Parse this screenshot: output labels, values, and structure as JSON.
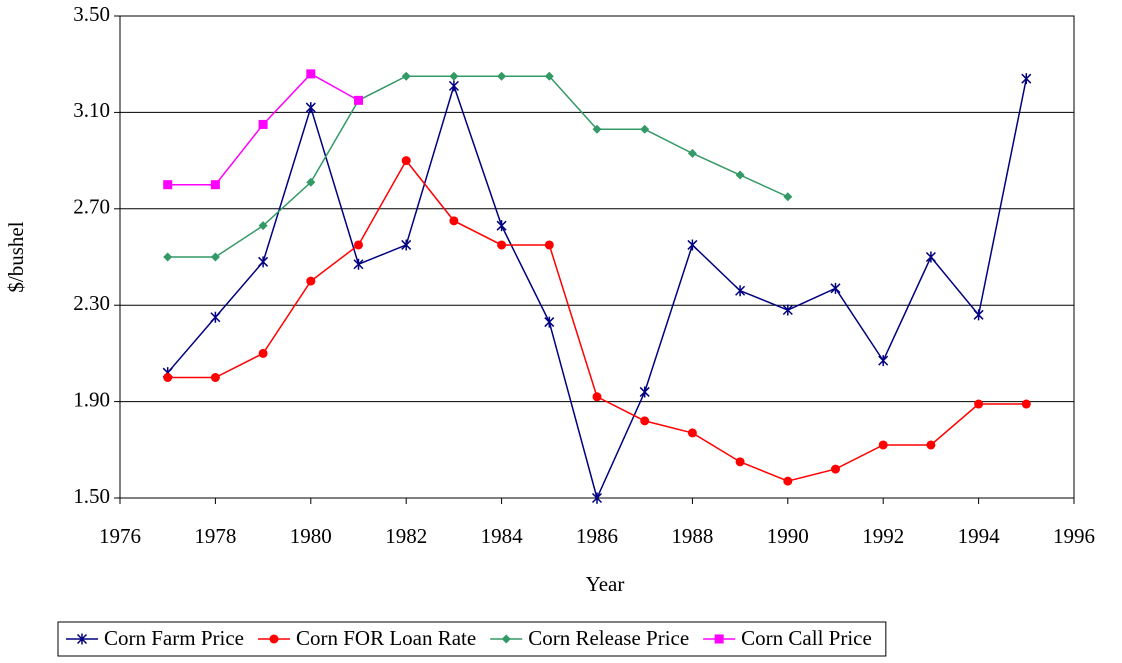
{
  "chart_data": {
    "type": "line",
    "x_label": "Year",
    "y_label": "$/bushel",
    "x": [
      1977,
      1978,
      1979,
      1980,
      1981,
      1982,
      1983,
      1984,
      1985,
      1986,
      1987,
      1988,
      1989,
      1990,
      1991,
      1992,
      1993,
      1994,
      1995
    ],
    "series": [
      {
        "name": "Corn Farm Price",
        "color": "#000080",
        "marker": "asterisk",
        "values": [
          2.02,
          2.25,
          2.48,
          3.12,
          2.47,
          2.55,
          3.21,
          2.63,
          2.23,
          1.5,
          1.94,
          2.55,
          2.36,
          2.28,
          2.37,
          2.07,
          2.5,
          2.26,
          3.24
        ]
      },
      {
        "name": "Corn FOR Loan Rate",
        "color": "#ff0000",
        "marker": "circle",
        "values": [
          2.0,
          2.0,
          2.1,
          2.4,
          2.55,
          2.9,
          2.65,
          2.55,
          2.55,
          1.92,
          1.82,
          1.77,
          1.65,
          1.57,
          1.62,
          1.72,
          1.72,
          1.89,
          1.89
        ]
      },
      {
        "name": "Corn Release Price",
        "color": "#339966",
        "marker": "diamond",
        "values": [
          2.5,
          2.5,
          2.63,
          2.81,
          3.15,
          3.25,
          3.25,
          3.25,
          3.25,
          3.03,
          3.03,
          2.93,
          2.84,
          2.75,
          null,
          null,
          null,
          null,
          null
        ]
      },
      {
        "name": "Corn Call Price",
        "color": "#ff00ff",
        "marker": "square",
        "values": [
          2.8,
          2.8,
          3.05,
          3.26,
          3.15,
          null,
          null,
          null,
          null,
          null,
          null,
          null,
          null,
          null,
          null,
          null,
          null,
          null,
          null
        ]
      }
    ],
    "xlim": [
      1976,
      1996
    ],
    "xticks": [
      1976,
      1978,
      1980,
      1982,
      1984,
      1986,
      1988,
      1990,
      1992,
      1994,
      1996
    ],
    "ylim": [
      1.5,
      3.5
    ],
    "yticks": [
      {
        "value": 1.5,
        "label": "1.50"
      },
      {
        "value": 1.9,
        "label": "1.90"
      },
      {
        "value": 2.3,
        "label": "2.30"
      },
      {
        "value": 2.7,
        "label": "2.70"
      },
      {
        "value": 3.1,
        "label": "3.10"
      },
      {
        "value": 3.5,
        "label": "3.50"
      }
    ],
    "grid": true,
    "legend": "bottom"
  }
}
